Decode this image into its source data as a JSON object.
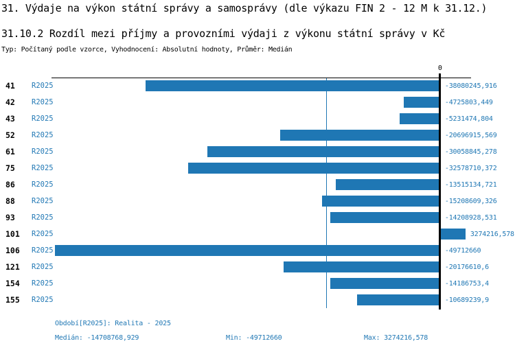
{
  "header": {
    "title1": "31. Výdaje na výkon státní správy a samosprávy (dle výkazu FIN 2 - 12 M k 31.12.)",
    "title2": "31.10.2 Rozdíl mezi příjmy a provozními výdaji z výkonu státní správy v Kč",
    "subtitle": "Typ: Počítaný podle vzorce, Vyhodnocení: Absolutní hodnoty, Průměr: Medián"
  },
  "chart_data": {
    "type": "bar",
    "orientation": "horizontal",
    "title": "31.10.2 Rozdíl mezi příjmy a provozními výdaji z výkonu státní správy v Kč",
    "subtitle": "Typ: Počítaný podle vzorce, Vyhodnocení: Absolutní hodnoty, Průměr: Medián",
    "categories": [
      "41",
      "42",
      "43",
      "52",
      "61",
      "75",
      "86",
      "88",
      "93",
      "101",
      "106",
      "121",
      "154",
      "155"
    ],
    "series_label": "R2025",
    "values": [
      -38080245.916,
      -4725803.449,
      -5231474.804,
      -20696915.569,
      -30058845.278,
      -32578710.372,
      -13515134.721,
      -15208609.326,
      -14208928.531,
      3274216.578,
      -49712660,
      -20176610.6,
      -14186753.4,
      -10689239.9
    ],
    "value_labels": [
      "-38080245,916",
      "-4725803,449",
      "-5231474,804",
      "-20696915,569",
      "-30058845,278",
      "-32578710,372",
      "-13515134,721",
      "-15208609,326",
      "-14208928,531",
      "3274216,578",
      "-49712660",
      "-20176610,6",
      "-14186753,4",
      "-10689239,9"
    ],
    "zero_tick_label": "0",
    "xlim": [
      -50200000,
      4000000
    ],
    "median_value": -14708768.929,
    "min_value": -49712660,
    "max_value": 3274216.578,
    "bar_color": "#1f77b4",
    "median_line_color": "#1f77b4",
    "grid": false,
    "legend_position": "none"
  },
  "footer": {
    "period": "Období[R2025]: Realita - 2025",
    "median": "Medián: -14708768,929",
    "min": "Min: -49712660",
    "max": "Max: 3274216,578"
  }
}
